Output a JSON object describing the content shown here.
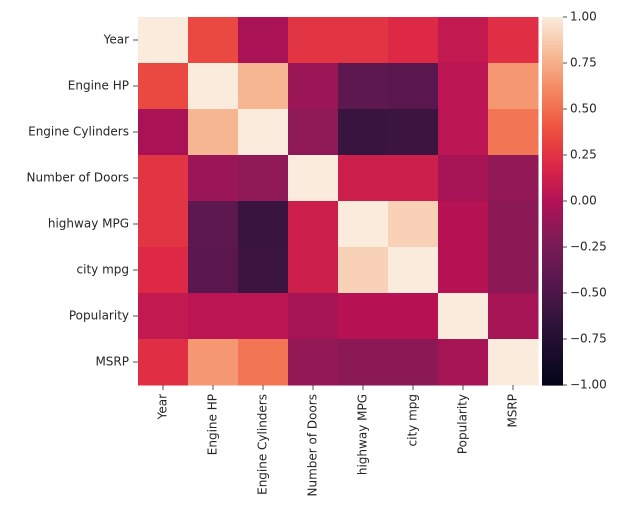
{
  "chart_data": {
    "type": "heatmap",
    "title": "",
    "xlabel": "",
    "ylabel": "",
    "rows": [
      "Year",
      "Engine HP",
      "Engine Cylinders",
      "Number of Doors",
      "highway MPG",
      "city mpg",
      "Popularity",
      "MSRP"
    ],
    "columns": [
      "Year",
      "Engine HP",
      "Engine Cylinders",
      "Number of Doors",
      "highway MPG",
      "city mpg",
      "Popularity",
      "MSRP"
    ],
    "values": [
      [
        1.0,
        0.35,
        -0.04,
        0.26,
        0.26,
        0.2,
        0.07,
        0.23
      ],
      [
        0.35,
        1.0,
        0.78,
        -0.1,
        -0.4,
        -0.43,
        0.04,
        0.66
      ],
      [
        -0.04,
        0.78,
        1.0,
        -0.14,
        -0.61,
        -0.59,
        0.04,
        0.53
      ],
      [
        0.26,
        -0.1,
        -0.14,
        1.0,
        0.12,
        0.12,
        -0.05,
        -0.13
      ],
      [
        0.26,
        -0.4,
        -0.61,
        0.12,
        1.0,
        0.89,
        0.02,
        -0.16
      ],
      [
        0.2,
        -0.43,
        -0.59,
        0.12,
        0.89,
        1.0,
        0.02,
        -0.16
      ],
      [
        0.07,
        0.04,
        0.04,
        -0.05,
        0.02,
        0.02,
        1.0,
        -0.05
      ],
      [
        0.23,
        0.66,
        0.53,
        -0.13,
        -0.16,
        -0.16,
        -0.05,
        1.0
      ]
    ],
    "color_range": [
      -1.0,
      1.0
    ],
    "colormap": "rocket",
    "colorbar_ticks": [
      "1.00",
      "0.75",
      "0.50",
      "0.25",
      "0.00",
      "−0.25",
      "−0.50",
      "−0.75",
      "−1.00"
    ],
    "colorbar_tick_values": [
      1.0,
      0.75,
      0.5,
      0.25,
      0.0,
      -0.25,
      -0.5,
      -0.75,
      -1.0
    ]
  }
}
